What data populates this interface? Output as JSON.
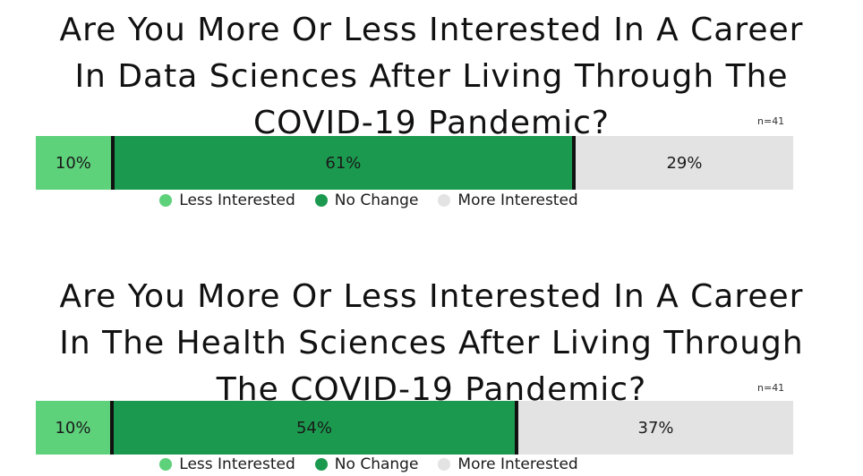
{
  "colors": {
    "less_interested": "#5ed17b",
    "no_change": "#1b9a4f",
    "more_interested": "#e3e3e3"
  },
  "chart_data": [
    {
      "type": "bar",
      "orientation": "horizontal-stacked",
      "title": "Are You More Or Less Interested In A Career In Data Sciences After Living Through The COVID-19 Pandemic?",
      "title_lines": [
        "Are You More Or Less Interested In A Career",
        "In Data Sciences After Living Through The",
        "COVID-19 Pandemic?"
      ],
      "n_label": "n=41",
      "series": [
        {
          "name": "Less Interested",
          "value": 10,
          "label": "10%"
        },
        {
          "name": "No Change",
          "value": 61,
          "label": "61%"
        },
        {
          "name": "More Interested",
          "value": 29,
          "label": "29%"
        }
      ],
      "legend_placement": "bottom"
    },
    {
      "type": "bar",
      "orientation": "horizontal-stacked",
      "title": "Are You More Or Less Interested In A Career In The Health Sciences After Living Through The COVID-19 Pandemic?",
      "title_lines": [
        "Are You More Or Less Interested In A Career",
        "In The Health Sciences After Living Through",
        "The COVID-19 Pandemic?"
      ],
      "n_label": "n=41",
      "series": [
        {
          "name": "Less Interested",
          "value": 10,
          "label": "10%"
        },
        {
          "name": "No Change",
          "value": 54,
          "label": "54%"
        },
        {
          "name": "More Interested",
          "value": 37,
          "label": "37%"
        }
      ],
      "legend_placement": "bottom"
    }
  ]
}
